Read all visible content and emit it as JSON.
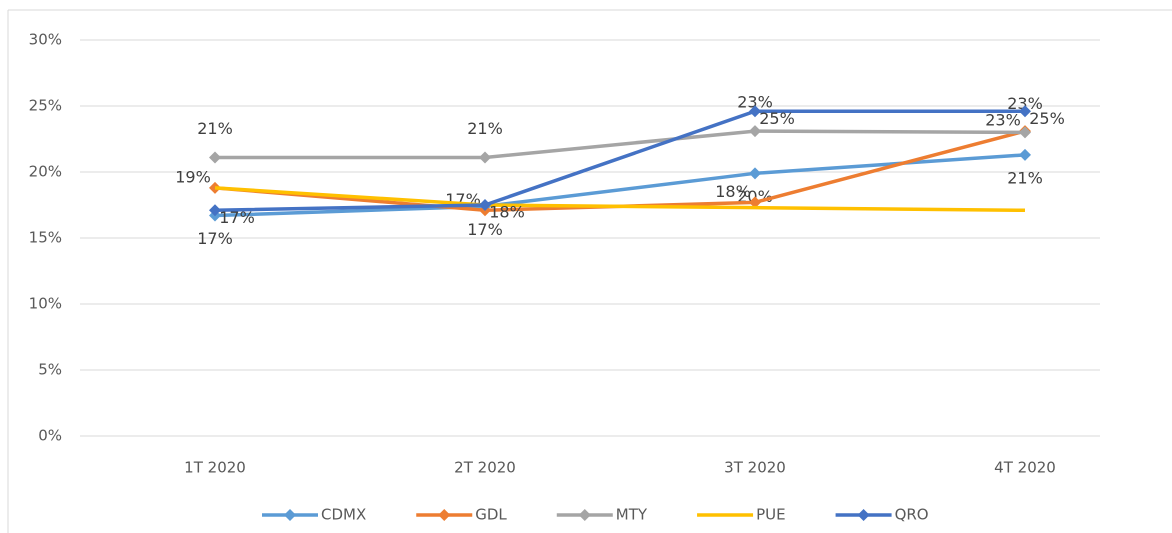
{
  "chart_data": {
    "type": "line",
    "categories": [
      "1T 2020",
      "2T 2020",
      "3T 2020",
      "4T 2020"
    ],
    "ylim": [
      0,
      30
    ],
    "yticks": [
      {
        "value": 0,
        "label": "0%"
      },
      {
        "value": 5,
        "label": "5%"
      },
      {
        "value": 10,
        "label": "10%"
      },
      {
        "value": 15,
        "label": "15%"
      },
      {
        "value": 20,
        "label": "20%"
      },
      {
        "value": 25,
        "label": "25%"
      },
      {
        "value": 30,
        "label": "30%"
      }
    ],
    "grid": true,
    "legend": "bottom",
    "series": [
      {
        "name": "CDMX",
        "color": "#5b9bd5",
        "marker": "diamond",
        "values": [
          16.7,
          17.4,
          19.9,
          21.3
        ],
        "value_labels": [
          "17%",
          "17%",
          "20%",
          "21%"
        ]
      },
      {
        "name": "GDL",
        "color": "#ed7d31",
        "marker": "diamond",
        "values": [
          18.8,
          17.1,
          17.7,
          23.1
        ],
        "value_labels": [
          "19%",
          "17%",
          "18%",
          "23%"
        ]
      },
      {
        "name": "MTY",
        "color": "#a5a5a5",
        "marker": "diamond",
        "values": [
          21.1,
          21.1,
          23.1,
          23.0
        ],
        "value_labels": [
          "21%",
          "21%",
          "23%",
          "23%"
        ]
      },
      {
        "name": "PUE",
        "color": "#ffc000",
        "marker": "none",
        "values": [
          18.8,
          17.5,
          17.3,
          17.1
        ]
      },
      {
        "name": "QRO",
        "color": "#4472c4",
        "marker": "diamond",
        "values": [
          17.1,
          17.5,
          24.6,
          24.6
        ],
        "value_labels": [
          "17%",
          "18%",
          "25%",
          "25%"
        ]
      }
    ]
  }
}
